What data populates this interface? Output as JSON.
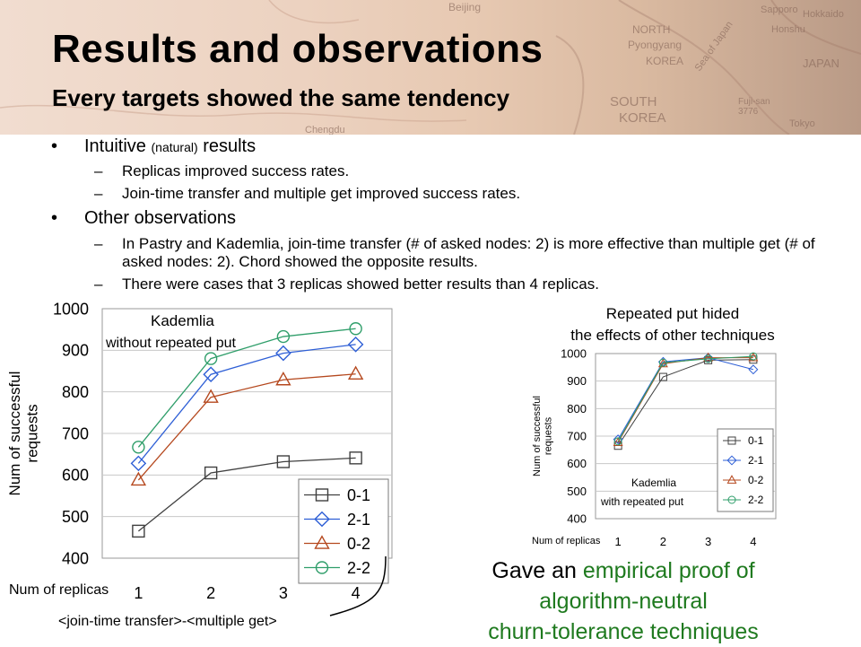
{
  "slide": {
    "title": "Results and observations",
    "subtitle": "Every targets showed the same tendency"
  },
  "banner_map_labels": [
    "Beijing",
    "NORTH",
    "Pyongyang",
    "KOREA",
    "SOUTH",
    "KOREA",
    "Sea of Japan",
    "JAPAN",
    "Sapporo",
    "Hokkaido",
    "Honshu",
    "Fuji-san",
    "3776",
    "Tokyo",
    "Chengdu"
  ],
  "bullets": [
    {
      "text": "Intuitive",
      "small": "(natural)",
      "text_after": "results",
      "sub": [
        "Replicas improved success rates.",
        "Join-time transfer and multiple get improved success rates."
      ]
    },
    {
      "text": "Other observations",
      "sub": [
        "In Pastry and Kademlia, join-time transfer (# of asked nodes: 2) is more effective than multiple get (# of asked nodes: 2). Chord showed the opposite results.",
        "There were cases that 3 replicas showed better results than 4 replicas."
      ]
    }
  ],
  "bullet_marks": {
    "l1": "•",
    "l2": "–"
  },
  "chart_data": [
    {
      "type": "line",
      "annotation": [
        "Kademlia",
        "without repeated put"
      ],
      "ylabel": "Num of successful requests",
      "xlabel": "Num of replicas",
      "x": [
        1,
        2,
        3,
        4
      ],
      "ylim": [
        400,
        1000
      ],
      "yticks": [
        400,
        500,
        600,
        700,
        800,
        900,
        1000
      ],
      "legend_position": "bottom-right",
      "grid": "horizontal",
      "series": [
        {
          "name": "0-1",
          "values": [
            465,
            605,
            632,
            641
          ],
          "color": "#404040",
          "marker": "square"
        },
        {
          "name": "2-1",
          "values": [
            628,
            842,
            893,
            914
          ],
          "color": "#2e5fd6",
          "marker": "diamond"
        },
        {
          "name": "0-2",
          "values": [
            588,
            787,
            829,
            843
          ],
          "color": "#b5481e",
          "marker": "triangle"
        },
        {
          "name": "2-2",
          "values": [
            667,
            880,
            933,
            952
          ],
          "color": "#2f9e6a",
          "marker": "circle"
        }
      ]
    },
    {
      "type": "line",
      "annotation": [
        "Kademlia",
        "with repeated put"
      ],
      "ylabel": "Num of successful requests",
      "xlabel": "Num of replicas",
      "x": [
        1,
        2,
        3,
        4
      ],
      "ylim": [
        400,
        1000
      ],
      "yticks": [
        400,
        500,
        600,
        700,
        800,
        900,
        1000
      ],
      "legend_position": "bottom-right",
      "grid": "horizontal",
      "series": [
        {
          "name": "0-1",
          "values": [
            665,
            915,
            976,
            978
          ],
          "color": "#404040",
          "marker": "square"
        },
        {
          "name": "2-1",
          "values": [
            688,
            970,
            985,
            942
          ],
          "color": "#2e5fd6",
          "marker": "diamond"
        },
        {
          "name": "0-2",
          "values": [
            677,
            963,
            985,
            985
          ],
          "color": "#b5481e",
          "marker": "triangle"
        },
        {
          "name": "2-2",
          "values": [
            681,
            967,
            981,
            990
          ],
          "color": "#2f9e6a",
          "marker": "circle"
        }
      ]
    }
  ],
  "repeated_put_note": [
    "Repeated put hided",
    "the effects of other techniques"
  ],
  "legend_footnote": "<join-time transfer>-<multiple get>",
  "proof": {
    "part1": "Gave an ",
    "part2": "empirical proof of",
    "part3": "algorithm-neutral",
    "part4": "churn-tolerance techniques",
    "accent_color": "#1f7a1f"
  }
}
